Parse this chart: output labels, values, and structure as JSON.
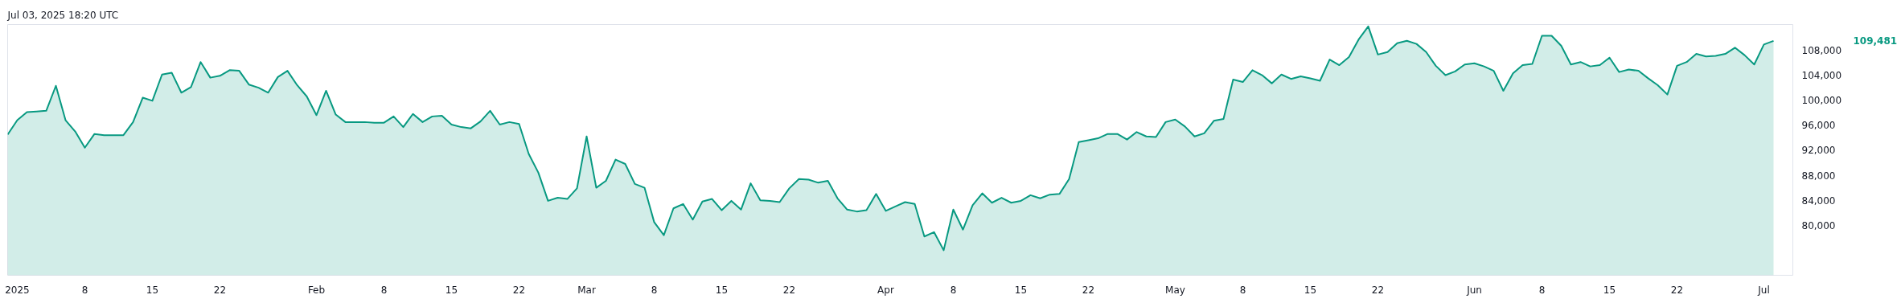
{
  "chart_data": {
    "type": "area",
    "title": "Jul 03, 2025 18:20 UTC",
    "x": [
      "2024-12-31",
      "2025-01-01",
      "2025-01-02",
      "2025-01-03",
      "2025-01-04",
      "2025-01-05",
      "2025-01-06",
      "2025-01-07",
      "2025-01-08",
      "2025-01-09",
      "2025-01-10",
      "2025-01-11",
      "2025-01-12",
      "2025-01-13",
      "2025-01-14",
      "2025-01-15",
      "2025-01-16",
      "2025-01-17",
      "2025-01-18",
      "2025-01-19",
      "2025-01-20",
      "2025-01-21",
      "2025-01-22",
      "2025-01-23",
      "2025-01-24",
      "2025-01-25",
      "2025-01-26",
      "2025-01-27",
      "2025-01-28",
      "2025-01-29",
      "2025-01-30",
      "2025-01-31",
      "2025-02-01",
      "2025-02-02",
      "2025-02-03",
      "2025-02-04",
      "2025-02-05",
      "2025-02-06",
      "2025-02-07",
      "2025-02-08",
      "2025-02-09",
      "2025-02-10",
      "2025-02-11",
      "2025-02-12",
      "2025-02-13",
      "2025-02-14",
      "2025-02-15",
      "2025-02-16",
      "2025-02-17",
      "2025-02-18",
      "2025-02-19",
      "2025-02-20",
      "2025-02-21",
      "2025-02-22",
      "2025-02-23",
      "2025-02-24",
      "2025-02-25",
      "2025-02-26",
      "2025-02-27",
      "2025-02-28",
      "2025-03-01",
      "2025-03-02",
      "2025-03-03",
      "2025-03-04",
      "2025-03-05",
      "2025-03-06",
      "2025-03-07",
      "2025-03-08",
      "2025-03-09",
      "2025-03-10",
      "2025-03-11",
      "2025-03-12",
      "2025-03-13",
      "2025-03-14",
      "2025-03-15",
      "2025-03-16",
      "2025-03-17",
      "2025-03-18",
      "2025-03-19",
      "2025-03-20",
      "2025-03-21",
      "2025-03-22",
      "2025-03-23",
      "2025-03-24",
      "2025-03-25",
      "2025-03-26",
      "2025-03-27",
      "2025-03-28",
      "2025-03-29",
      "2025-03-30",
      "2025-03-31",
      "2025-04-01",
      "2025-04-02",
      "2025-04-03",
      "2025-04-04",
      "2025-04-05",
      "2025-04-06",
      "2025-04-07",
      "2025-04-08",
      "2025-04-09",
      "2025-04-10",
      "2025-04-11",
      "2025-04-12",
      "2025-04-13",
      "2025-04-14",
      "2025-04-15",
      "2025-04-16",
      "2025-04-17",
      "2025-04-18",
      "2025-04-19",
      "2025-04-20",
      "2025-04-21",
      "2025-04-22",
      "2025-04-23",
      "2025-04-24",
      "2025-04-25",
      "2025-04-26",
      "2025-04-27",
      "2025-04-28",
      "2025-04-29",
      "2025-04-30",
      "2025-05-01",
      "2025-05-02",
      "2025-05-03",
      "2025-05-04",
      "2025-05-05",
      "2025-05-06",
      "2025-05-07",
      "2025-05-08",
      "2025-05-09",
      "2025-05-10",
      "2025-05-11",
      "2025-05-12",
      "2025-05-13",
      "2025-05-14",
      "2025-05-15",
      "2025-05-16",
      "2025-05-17",
      "2025-05-18",
      "2025-05-19",
      "2025-05-20",
      "2025-05-21",
      "2025-05-22",
      "2025-05-23",
      "2025-05-24",
      "2025-05-25",
      "2025-05-26",
      "2025-05-27",
      "2025-05-28",
      "2025-05-29",
      "2025-05-30",
      "2025-05-31",
      "2025-06-01",
      "2025-06-02",
      "2025-06-03",
      "2025-06-04",
      "2025-06-05",
      "2025-06-06",
      "2025-06-07",
      "2025-06-08",
      "2025-06-09",
      "2025-06-10",
      "2025-06-11",
      "2025-06-12",
      "2025-06-13",
      "2025-06-14",
      "2025-06-15",
      "2025-06-16",
      "2025-06-17",
      "2025-06-18",
      "2025-06-19",
      "2025-06-20",
      "2025-06-21",
      "2025-06-22",
      "2025-06-23",
      "2025-06-24",
      "2025-06-25",
      "2025-06-26",
      "2025-06-27",
      "2025-06-28",
      "2025-06-29",
      "2025-06-30",
      "2025-07-01",
      "2025-07-02"
    ],
    "series": [
      {
        "color": "#089981",
        "values": [
          94500,
          96800,
          98100,
          98200,
          98300,
          102300,
          96800,
          95000,
          92400,
          94600,
          94400,
          94400,
          94400,
          96500,
          100400,
          99900,
          104100,
          104400,
          101200,
          102100,
          106100,
          103600,
          103900,
          104800,
          104700,
          102500,
          102000,
          101200,
          103700,
          104700,
          102400,
          100600,
          97600,
          101500,
          97700,
          96500,
          96500,
          96500,
          96400,
          96400,
          97400,
          95700,
          97800,
          96500,
          97400,
          97500,
          96100,
          95700,
          95500,
          96600,
          98300,
          96100,
          96500,
          96200,
          91400,
          88400,
          83900,
          84400,
          84200,
          85900,
          94200,
          86000,
          87100,
          90500,
          89800,
          86600,
          86000,
          80500,
          78400,
          82700,
          83400,
          80900,
          83800,
          84200,
          82400,
          83900,
          82500,
          86700,
          84000,
          83900,
          83700,
          85900,
          87400,
          87300,
          86800,
          87100,
          84300,
          82500,
          82200,
          82400,
          85000,
          82300,
          83000,
          83700,
          83400,
          78200,
          78900,
          76000,
          82500,
          79300,
          83200,
          85100,
          83600,
          84400,
          83600,
          83900,
          84800,
          84300,
          84900,
          85000,
          87400,
          93300,
          93600,
          93900,
          94600,
          94600,
          93700,
          94900,
          94200,
          94100,
          96500,
          96900,
          95800,
          94200,
          94700,
          96700,
          97000,
          103300,
          102900,
          104800,
          104000,
          102700,
          104100,
          103400,
          103800,
          103500,
          103100,
          106500,
          105600,
          106900,
          109700,
          111800,
          107300,
          107700,
          109100,
          109500,
          109000,
          107700,
          105500,
          104000,
          104600,
          105700,
          105900,
          105400,
          104700,
          101500,
          104300,
          105600,
          105800,
          110300,
          110300,
          108700,
          105700,
          106100,
          105400,
          105600,
          106800,
          104500,
          104900,
          104700,
          103500,
          102400,
          100900,
          105500,
          106100,
          107400,
          107000,
          107100,
          107400,
          108400,
          107200,
          105700,
          108900,
          109481
        ]
      }
    ],
    "xlim": [
      "2024-12-31",
      "2025-07-04"
    ],
    "xticks": [
      {
        "value": "2025-01-01",
        "label": "2025"
      },
      {
        "value": "2025-01-08",
        "label": "8"
      },
      {
        "value": "2025-01-15",
        "label": "15"
      },
      {
        "value": "2025-01-22",
        "label": "22"
      },
      {
        "value": "2025-02-01",
        "label": "Feb"
      },
      {
        "value": "2025-02-08",
        "label": "8"
      },
      {
        "value": "2025-02-15",
        "label": "15"
      },
      {
        "value": "2025-02-22",
        "label": "22"
      },
      {
        "value": "2025-03-01",
        "label": "Mar"
      },
      {
        "value": "2025-03-08",
        "label": "8"
      },
      {
        "value": "2025-03-15",
        "label": "15"
      },
      {
        "value": "2025-03-22",
        "label": "22"
      },
      {
        "value": "2025-04-01",
        "label": "Apr"
      },
      {
        "value": "2025-04-08",
        "label": "8"
      },
      {
        "value": "2025-04-15",
        "label": "15"
      },
      {
        "value": "2025-04-22",
        "label": "22"
      },
      {
        "value": "2025-05-01",
        "label": "May"
      },
      {
        "value": "2025-05-08",
        "label": "8"
      },
      {
        "value": "2025-05-15",
        "label": "15"
      },
      {
        "value": "2025-05-22",
        "label": "22"
      },
      {
        "value": "2025-06-01",
        "label": "Jun"
      },
      {
        "value": "2025-06-08",
        "label": "8"
      },
      {
        "value": "2025-06-15",
        "label": "15"
      },
      {
        "value": "2025-06-22",
        "label": "22"
      },
      {
        "value": "2025-07-01",
        "label": "Jul"
      }
    ],
    "ylim": [
      72000,
      112100
    ],
    "yticks": [
      {
        "value": 80000,
        "label": "80,000"
      },
      {
        "value": 84000,
        "label": "84,000"
      },
      {
        "value": 88000,
        "label": "88,000"
      },
      {
        "value": 92000,
        "label": "92,000"
      },
      {
        "value": 96000,
        "label": "96,000"
      },
      {
        "value": 100000,
        "label": "100,000"
      },
      {
        "value": 104000,
        "label": "104,000"
      },
      {
        "value": 108000,
        "label": "108,000"
      }
    ],
    "annotations": [
      "109,481"
    ],
    "grid": false
  }
}
